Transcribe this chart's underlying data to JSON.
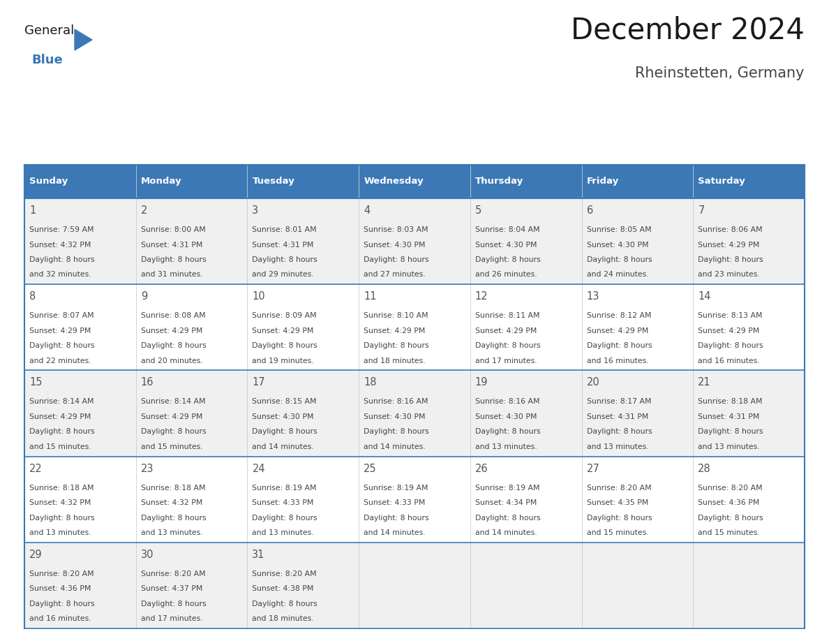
{
  "title": "December 2024",
  "subtitle": "Rheinstetten, Germany",
  "header_bg_color": "#3b78b5",
  "header_text_color": "#ffffff",
  "day_names": [
    "Sunday",
    "Monday",
    "Tuesday",
    "Wednesday",
    "Thursday",
    "Friday",
    "Saturday"
  ],
  "row_bg_colors": [
    "#f0f0f0",
    "#ffffff",
    "#f0f0f0",
    "#ffffff",
    "#f0f0f0"
  ],
  "border_color": "#3b78b5",
  "text_color": "#444444",
  "num_color": "#555555",
  "days": [
    {
      "day": 1,
      "col": 0,
      "row": 0,
      "sunrise": "7:59 AM",
      "sunset": "4:32 PM",
      "daylight": "8 hours and 32 minutes."
    },
    {
      "day": 2,
      "col": 1,
      "row": 0,
      "sunrise": "8:00 AM",
      "sunset": "4:31 PM",
      "daylight": "8 hours and 31 minutes."
    },
    {
      "day": 3,
      "col": 2,
      "row": 0,
      "sunrise": "8:01 AM",
      "sunset": "4:31 PM",
      "daylight": "8 hours and 29 minutes."
    },
    {
      "day": 4,
      "col": 3,
      "row": 0,
      "sunrise": "8:03 AM",
      "sunset": "4:30 PM",
      "daylight": "8 hours and 27 minutes."
    },
    {
      "day": 5,
      "col": 4,
      "row": 0,
      "sunrise": "8:04 AM",
      "sunset": "4:30 PM",
      "daylight": "8 hours and 26 minutes."
    },
    {
      "day": 6,
      "col": 5,
      "row": 0,
      "sunrise": "8:05 AM",
      "sunset": "4:30 PM",
      "daylight": "8 hours and 24 minutes."
    },
    {
      "day": 7,
      "col": 6,
      "row": 0,
      "sunrise": "8:06 AM",
      "sunset": "4:29 PM",
      "daylight": "8 hours and 23 minutes."
    },
    {
      "day": 8,
      "col": 0,
      "row": 1,
      "sunrise": "8:07 AM",
      "sunset": "4:29 PM",
      "daylight": "8 hours and 22 minutes."
    },
    {
      "day": 9,
      "col": 1,
      "row": 1,
      "sunrise": "8:08 AM",
      "sunset": "4:29 PM",
      "daylight": "8 hours and 20 minutes."
    },
    {
      "day": 10,
      "col": 2,
      "row": 1,
      "sunrise": "8:09 AM",
      "sunset": "4:29 PM",
      "daylight": "8 hours and 19 minutes."
    },
    {
      "day": 11,
      "col": 3,
      "row": 1,
      "sunrise": "8:10 AM",
      "sunset": "4:29 PM",
      "daylight": "8 hours and 18 minutes."
    },
    {
      "day": 12,
      "col": 4,
      "row": 1,
      "sunrise": "8:11 AM",
      "sunset": "4:29 PM",
      "daylight": "8 hours and 17 minutes."
    },
    {
      "day": 13,
      "col": 5,
      "row": 1,
      "sunrise": "8:12 AM",
      "sunset": "4:29 PM",
      "daylight": "8 hours and 16 minutes."
    },
    {
      "day": 14,
      "col": 6,
      "row": 1,
      "sunrise": "8:13 AM",
      "sunset": "4:29 PM",
      "daylight": "8 hours and 16 minutes."
    },
    {
      "day": 15,
      "col": 0,
      "row": 2,
      "sunrise": "8:14 AM",
      "sunset": "4:29 PM",
      "daylight": "8 hours and 15 minutes."
    },
    {
      "day": 16,
      "col": 1,
      "row": 2,
      "sunrise": "8:14 AM",
      "sunset": "4:29 PM",
      "daylight": "8 hours and 15 minutes."
    },
    {
      "day": 17,
      "col": 2,
      "row": 2,
      "sunrise": "8:15 AM",
      "sunset": "4:30 PM",
      "daylight": "8 hours and 14 minutes."
    },
    {
      "day": 18,
      "col": 3,
      "row": 2,
      "sunrise": "8:16 AM",
      "sunset": "4:30 PM",
      "daylight": "8 hours and 14 minutes."
    },
    {
      "day": 19,
      "col": 4,
      "row": 2,
      "sunrise": "8:16 AM",
      "sunset": "4:30 PM",
      "daylight": "8 hours and 13 minutes."
    },
    {
      "day": 20,
      "col": 5,
      "row": 2,
      "sunrise": "8:17 AM",
      "sunset": "4:31 PM",
      "daylight": "8 hours and 13 minutes."
    },
    {
      "day": 21,
      "col": 6,
      "row": 2,
      "sunrise": "8:18 AM",
      "sunset": "4:31 PM",
      "daylight": "8 hours and 13 minutes."
    },
    {
      "day": 22,
      "col": 0,
      "row": 3,
      "sunrise": "8:18 AM",
      "sunset": "4:32 PM",
      "daylight": "8 hours and 13 minutes."
    },
    {
      "day": 23,
      "col": 1,
      "row": 3,
      "sunrise": "8:18 AM",
      "sunset": "4:32 PM",
      "daylight": "8 hours and 13 minutes."
    },
    {
      "day": 24,
      "col": 2,
      "row": 3,
      "sunrise": "8:19 AM",
      "sunset": "4:33 PM",
      "daylight": "8 hours and 13 minutes."
    },
    {
      "day": 25,
      "col": 3,
      "row": 3,
      "sunrise": "8:19 AM",
      "sunset": "4:33 PM",
      "daylight": "8 hours and 14 minutes."
    },
    {
      "day": 26,
      "col": 4,
      "row": 3,
      "sunrise": "8:19 AM",
      "sunset": "4:34 PM",
      "daylight": "8 hours and 14 minutes."
    },
    {
      "day": 27,
      "col": 5,
      "row": 3,
      "sunrise": "8:20 AM",
      "sunset": "4:35 PM",
      "daylight": "8 hours and 15 minutes."
    },
    {
      "day": 28,
      "col": 6,
      "row": 3,
      "sunrise": "8:20 AM",
      "sunset": "4:36 PM",
      "daylight": "8 hours and 15 minutes."
    },
    {
      "day": 29,
      "col": 0,
      "row": 4,
      "sunrise": "8:20 AM",
      "sunset": "4:36 PM",
      "daylight": "8 hours and 16 minutes."
    },
    {
      "day": 30,
      "col": 1,
      "row": 4,
      "sunrise": "8:20 AM",
      "sunset": "4:37 PM",
      "daylight": "8 hours and 17 minutes."
    },
    {
      "day": 31,
      "col": 2,
      "row": 4,
      "sunrise": "8:20 AM",
      "sunset": "4:38 PM",
      "daylight": "8 hours and 18 minutes."
    }
  ],
  "logo_text_general": "General",
  "logo_text_blue": "Blue",
  "logo_color_general": "#1a1a1a",
  "logo_color_blue": "#3b78b5",
  "logo_triangle_color": "#3b78b5"
}
